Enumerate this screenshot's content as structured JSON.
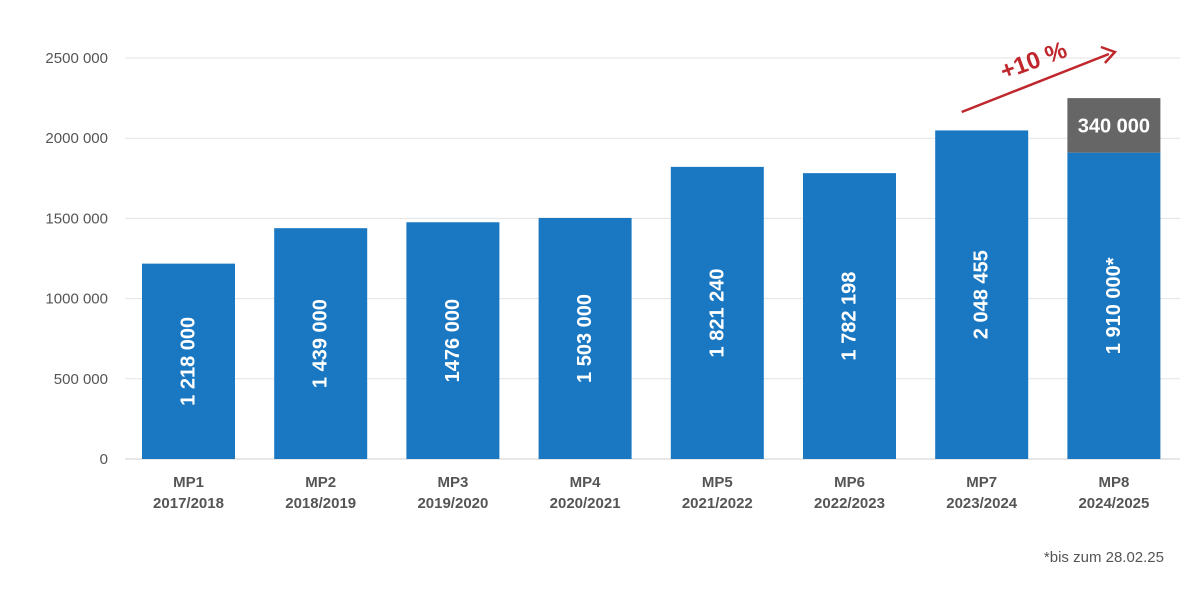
{
  "chart_data": {
    "type": "bar",
    "title": "",
    "xlabel": "",
    "ylabel": "",
    "ylim": [
      0,
      2500000
    ],
    "yticks": [
      0,
      500000,
      1000000,
      1500000,
      2000000,
      2500000
    ],
    "ytick_labels": [
      "0",
      "500 000",
      "1000 000",
      "1500 000",
      "2000 000",
      "2500 000"
    ],
    "grid": true,
    "categories": [
      [
        "MP1",
        "2017/2018"
      ],
      [
        "MP2",
        "2018/2019"
      ],
      [
        "MP3",
        "2019/2020"
      ],
      [
        "MP4",
        "2020/2021"
      ],
      [
        "MP5",
        "2021/2022"
      ],
      [
        "MP6",
        "2022/2023"
      ],
      [
        "MP7",
        "2023/2024"
      ],
      [
        "MP8",
        "2024/2025"
      ]
    ],
    "series": [
      {
        "values": [
          1218000,
          1439000,
          1476000,
          1503000,
          1821240,
          1782198,
          2048455,
          1910000
        ],
        "labels": [
          "1 218 000",
          "1 439 000",
          "1476 000",
          "1 503 000",
          "1 821 240",
          "1 782 198",
          "2 048 455",
          "1 910 000*"
        ],
        "color": "#1a78c2"
      },
      {
        "values": [
          null,
          null,
          null,
          null,
          null,
          null,
          null,
          340000
        ],
        "labels": [
          "",
          "",
          "",
          "",
          "",
          "",
          "",
          "340 000"
        ],
        "color": "#666666"
      }
    ],
    "annotation": {
      "text": "+10 %",
      "color": "#c0272d"
    },
    "footnote": "*bis zum 28.02.25"
  }
}
